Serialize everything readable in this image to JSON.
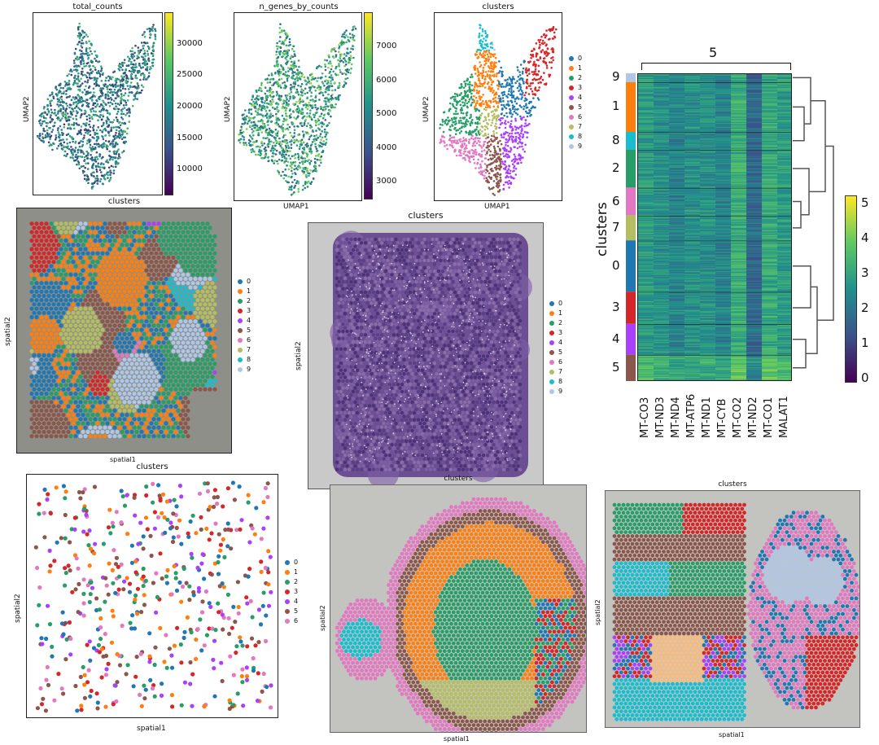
{
  "palette": [
    "#1f77b4",
    "#ff7f0e",
    "#279e68",
    "#d62728",
    "#aa40fc",
    "#8c564b",
    "#e377c2",
    "#b5bd61",
    "#17becf",
    "#aec7e8"
  ],
  "umap_total_counts": {
    "title": "total_counts",
    "ylabel": "UMAP2",
    "colorbar_ticks": [
      "30000",
      "25000",
      "20000",
      "15000",
      "10000"
    ]
  },
  "umap_n_genes": {
    "title": "n_genes_by_counts",
    "ylabel": "UMAP2",
    "xlabel": "UMAP1",
    "colorbar_ticks": [
      "7000",
      "6000",
      "5000",
      "4000",
      "3000"
    ]
  },
  "umap_clusters": {
    "title": "clusters",
    "ylabel": "UMAP2",
    "xlabel": "UMAP1",
    "legend": [
      "0",
      "1",
      "2",
      "3",
      "4",
      "5",
      "6",
      "7",
      "8",
      "9"
    ]
  },
  "spatial_a": {
    "title": "clusters",
    "ylabel": "spatial2",
    "xlabel": "spatial1",
    "legend": [
      "0",
      "1",
      "2",
      "3",
      "4",
      "5",
      "6",
      "7",
      "8",
      "9"
    ]
  },
  "spatial_b": {
    "title": "clusters",
    "ylabel": "spatial2",
    "legend": [
      "0",
      "1",
      "2",
      "3",
      "4",
      "5",
      "6",
      "7",
      "8",
      "9"
    ]
  },
  "spatial_c": {
    "title": "clusters",
    "ylabel": "spatial2",
    "xlabel": "spatial1",
    "legend": [
      "0",
      "1",
      "2",
      "3",
      "4",
      "5",
      "6"
    ]
  },
  "spatial_d": {
    "title": "clusters",
    "ylabel": "spatial2",
    "xlabel": "spatial1"
  },
  "spatial_e": {
    "title": "clusters",
    "ylabel": "spatial2",
    "xlabel": "spatial1"
  },
  "heatmap": {
    "group_label": "5",
    "ylabel": "clusters",
    "row_order": [
      "9",
      "1",
      "8",
      "2",
      "6",
      "7",
      "0",
      "3",
      "4",
      "5"
    ],
    "genes": [
      "MT-CO3",
      "MT-ND3",
      "MT-ND4",
      "MT-ATP6",
      "MT-ND1",
      "MT-CYB",
      "MT-CO2",
      "MT-ND2",
      "MT-CO1",
      "MALAT1"
    ],
    "colorbar_ticks": [
      "5",
      "4",
      "3",
      "2",
      "1",
      "0"
    ]
  },
  "chart_data": [
    {
      "type": "scatter",
      "title": "total_counts",
      "xlabel": "",
      "ylabel": "UMAP2",
      "color_scale": "viridis",
      "clim": [
        7000,
        35000
      ],
      "colorbar_ticks": [
        10000,
        15000,
        20000,
        25000,
        30000
      ]
    },
    {
      "type": "scatter",
      "title": "n_genes_by_counts",
      "xlabel": "UMAP1",
      "ylabel": "UMAP2",
      "color_scale": "viridis",
      "clim": [
        2500,
        7900
      ],
      "colorbar_ticks": [
        3000,
        4000,
        5000,
        6000,
        7000
      ]
    },
    {
      "type": "scatter",
      "title": "clusters",
      "xlabel": "UMAP1",
      "ylabel": "UMAP2",
      "legend": [
        "0",
        "1",
        "2",
        "3",
        "4",
        "5",
        "6",
        "7",
        "8",
        "9"
      ]
    },
    {
      "type": "scatter",
      "title": "clusters",
      "xlabel": "spatial1",
      "ylabel": "spatial2",
      "legend": [
        "0",
        "1",
        "2",
        "3",
        "4",
        "5",
        "6",
        "7",
        "8",
        "9"
      ]
    },
    {
      "type": "scatter",
      "title": "clusters",
      "xlabel": "",
      "ylabel": "spatial2",
      "legend": [
        "0",
        "1",
        "2",
        "3",
        "4",
        "5",
        "6",
        "7",
        "8",
        "9"
      ]
    },
    {
      "type": "scatter",
      "title": "clusters",
      "xlabel": "spatial1",
      "ylabel": "spatial2",
      "legend": [
        "0",
        "1",
        "2",
        "3",
        "4",
        "5",
        "6"
      ]
    },
    {
      "type": "scatter",
      "title": "clusters",
      "xlabel": "spatial1",
      "ylabel": "spatial2"
    },
    {
      "type": "scatter",
      "title": "clusters",
      "xlabel": "spatial1",
      "ylabel": "spatial2"
    },
    {
      "type": "heatmap",
      "ylabel": "clusters",
      "group_label": "5",
      "rows": [
        "9",
        "1",
        "8",
        "2",
        "6",
        "7",
        "0",
        "3",
        "4",
        "5"
      ],
      "columns": [
        "MT-CO3",
        "MT-ND3",
        "MT-ND4",
        "MT-ATP6",
        "MT-ND1",
        "MT-CYB",
        "MT-CO2",
        "MT-ND2",
        "MT-CO1",
        "MALAT1"
      ],
      "clim": [
        0,
        5.3
      ],
      "colorbar_ticks": [
        0,
        1,
        2,
        3,
        4,
        5
      ]
    }
  ]
}
